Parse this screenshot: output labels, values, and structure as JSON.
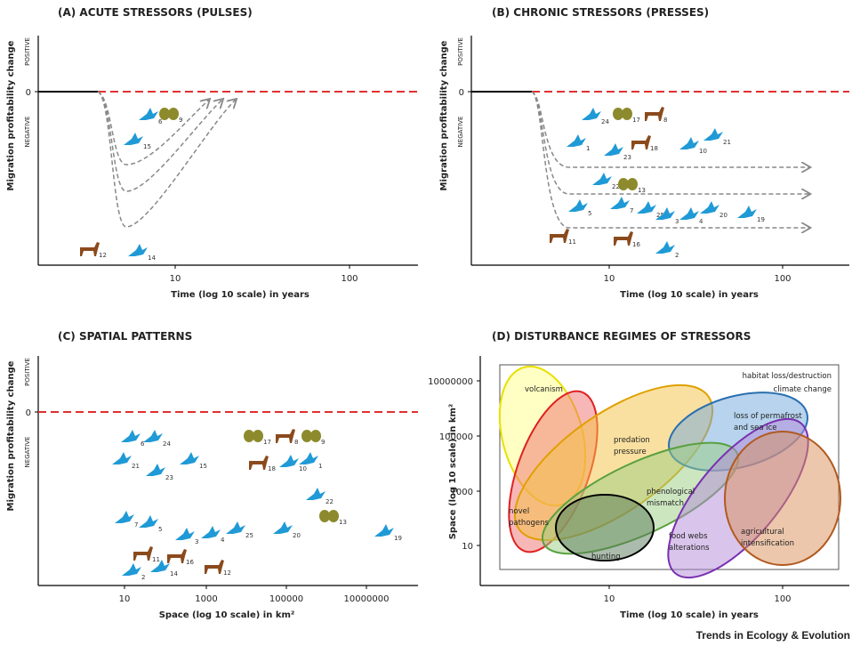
{
  "panels": [
    {
      "title": "(A) ACUTE STRESSORS (PULSES)",
      "y_label": "Migration profitability change",
      "positive": "POSITIVE",
      "negative": "NEGATIVE",
      "zero": "0",
      "x_label": "Time (log 10 scale) in years",
      "x_ticks": [
        "10",
        "100"
      ],
      "species": [
        "6",
        "9",
        "15",
        "12",
        "14"
      ]
    },
    {
      "title": "(B) CHRONIC STRESSORS (PRESSES)",
      "y_label": "Migration profitability change",
      "positive": "POSITIVE",
      "negative": "NEGATIVE",
      "zero": "0",
      "x_label": "Time (log 10 scale) in years",
      "x_ticks": [
        "10",
        "100"
      ],
      "species": [
        "24",
        "17",
        "8",
        "1",
        "23",
        "18",
        "10",
        "21",
        "22",
        "13",
        "5",
        "7",
        "25",
        "3",
        "4",
        "20",
        "19",
        "11",
        "16",
        "2"
      ]
    },
    {
      "title": "(C) SPATIAL PATTERNS",
      "y_label": "Migration profitability change",
      "positive": "POSITIVE",
      "negative": "NEGATIVE",
      "zero": "0",
      "x_label": "Space (log 10 scale) in km²",
      "x_ticks": [
        "10",
        "1000",
        "100000",
        "10000000"
      ],
      "species": [
        "6",
        "24",
        "21",
        "23",
        "15",
        "17",
        "8",
        "9",
        "18",
        "10",
        "1",
        "22",
        "13",
        "7",
        "5",
        "3",
        "4",
        "25",
        "20",
        "19",
        "11",
        "16",
        "14",
        "12",
        "2"
      ]
    },
    {
      "title": "(D) DISTURBANCE REGIMES OF STRESSORS",
      "y_label": "Space (log 10 scale) in km²",
      "x_label": "Time (log 10 scale) in years",
      "x_ticks": [
        "10",
        "100"
      ],
      "y_ticks": [
        "10000000",
        "100000",
        "1000",
        "10"
      ],
      "regions": [
        [
          "volcanism"
        ],
        [
          "novel",
          "pathogens"
        ],
        [
          "predation",
          "pressure"
        ],
        [
          "loss of permafrost",
          "and sea ice"
        ],
        [
          "phenological",
          "mismatch"
        ],
        [
          "food webs",
          "alterations"
        ],
        [
          "agricultural",
          "intensification"
        ],
        [
          "hunting"
        ]
      ],
      "notes": [
        "habitat loss/destruction",
        "climate change"
      ]
    }
  ],
  "footer": "Trends in Ecology & Evolution"
}
